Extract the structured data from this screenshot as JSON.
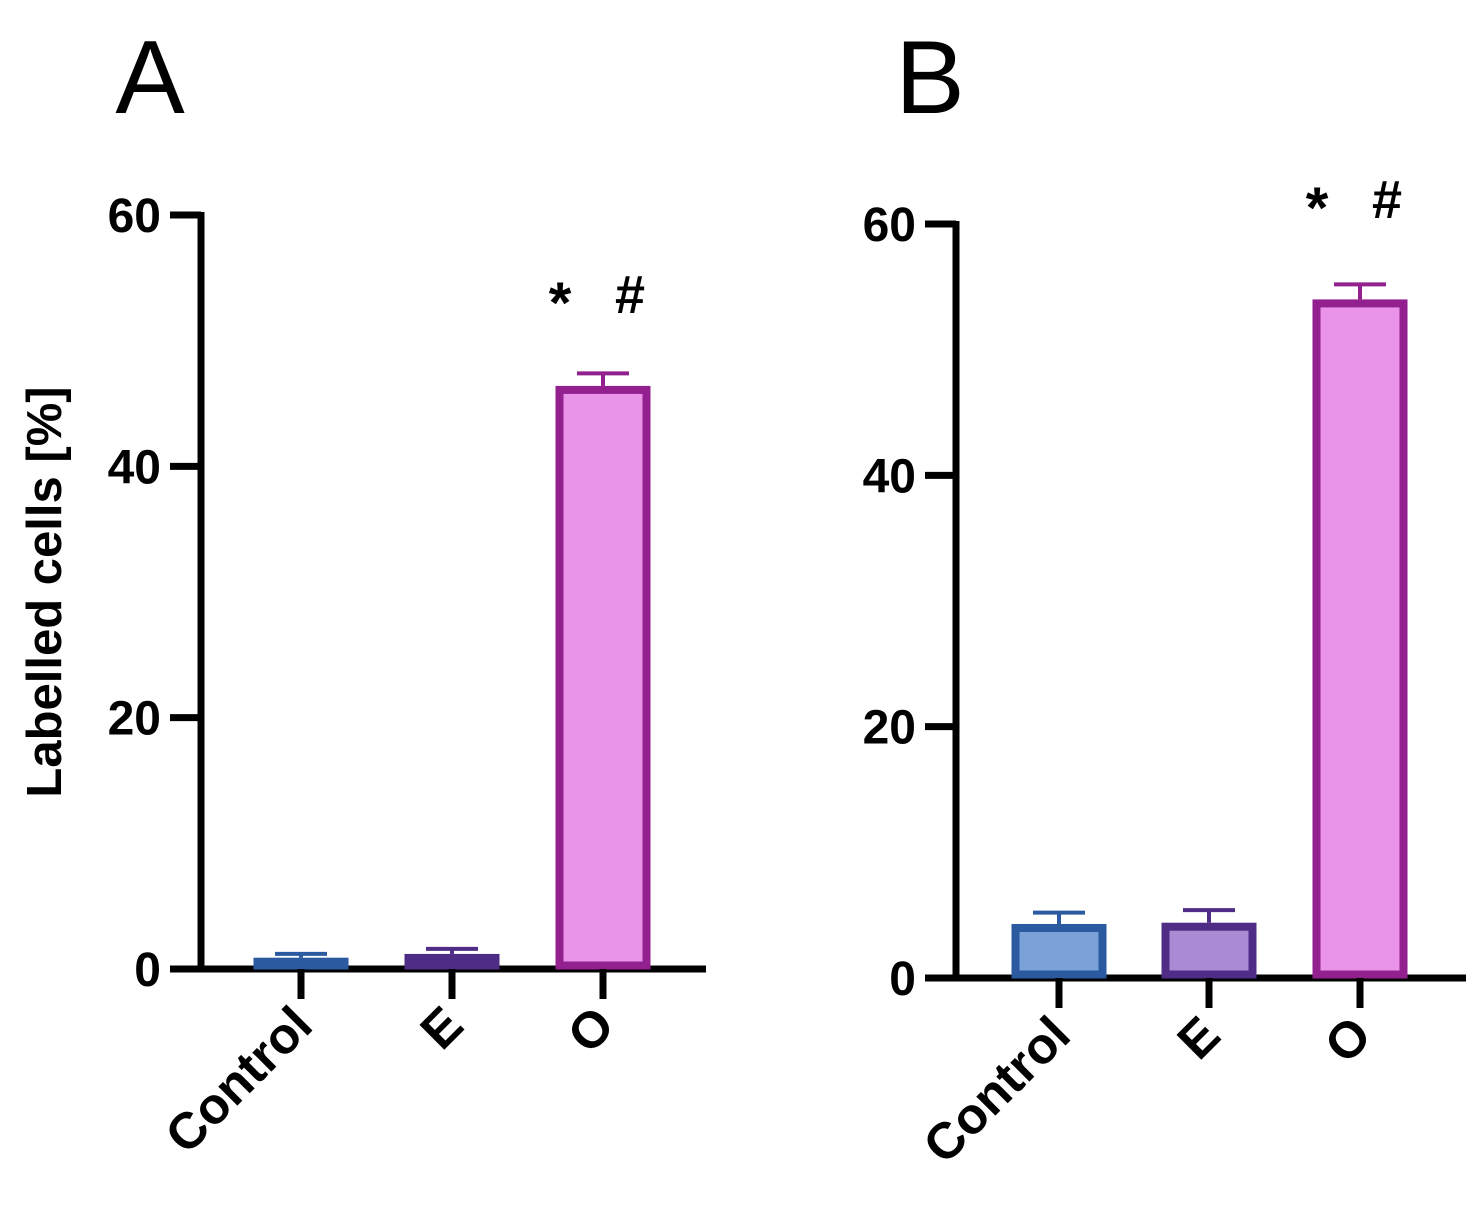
{
  "chart_data": [
    {
      "panel": "A",
      "type": "bar",
      "ylabel": "Labelled cells [%]",
      "ylim": [
        0,
        60
      ],
      "yticks": [
        0,
        20,
        40,
        60
      ],
      "categories": [
        "Control",
        "E",
        "O"
      ],
      "values": [
        0.9,
        1.2,
        46.4
      ],
      "errors": [
        0.3,
        0.4,
        1.0
      ],
      "fill_colors": [
        "#2b5aa0",
        "#6a3d9e",
        "#e994e8"
      ],
      "stroke_colors": [
        "#2b5aa0",
        "#4f2d86",
        "#93208f"
      ],
      "annotation": "*  #",
      "annotation_category": "O"
    },
    {
      "panel": "B",
      "type": "bar",
      "ylabel": "",
      "ylim": [
        0,
        60
      ],
      "yticks": [
        0,
        20,
        40,
        60
      ],
      "categories": [
        "Control",
        "E",
        "O"
      ],
      "values": [
        4.3,
        4.4,
        54.0
      ],
      "errors": [
        0.9,
        1.0,
        1.2
      ],
      "fill_colors": [
        "#7ba2d8",
        "#a98ad3",
        "#e994e8"
      ],
      "stroke_colors": [
        "#2b5aa0",
        "#4f2d86",
        "#93208f"
      ],
      "annotation": "*  #",
      "annotation_category": "O"
    }
  ]
}
